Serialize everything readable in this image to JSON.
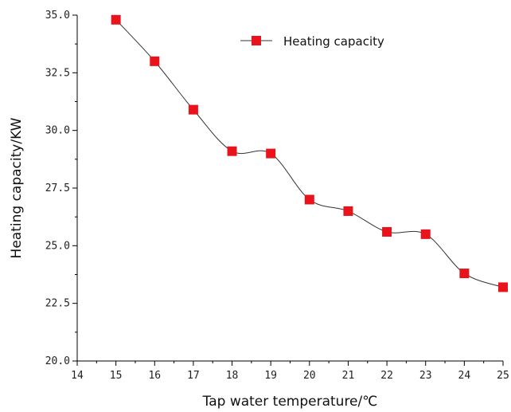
{
  "chart_data": {
    "type": "line",
    "xlabel": "Tap water temperature/℃",
    "ylabel": "Heating capacity/KW",
    "xlim": [
      14,
      25
    ],
    "ylim": [
      20.0,
      35.0
    ],
    "x_ticks": [
      "14",
      "15",
      "16",
      "17",
      "18",
      "19",
      "20",
      "21",
      "22",
      "23",
      "24",
      "25"
    ],
    "y_ticks": [
      "20.0",
      "22.5",
      "25.0",
      "27.5",
      "30.0",
      "32.5",
      "35.0"
    ],
    "legend_position": "top-right",
    "grid": false,
    "series": [
      {
        "name": "Heating capacity",
        "color": "#e8131b",
        "line_color": "#333333",
        "marker": "square",
        "x": [
          15,
          16,
          17,
          18,
          19,
          20,
          21,
          22,
          23,
          24,
          25
        ],
        "y": [
          34.8,
          33.0,
          30.9,
          29.1,
          29.0,
          27.0,
          26.5,
          25.6,
          25.5,
          23.8,
          23.2
        ]
      }
    ]
  }
}
